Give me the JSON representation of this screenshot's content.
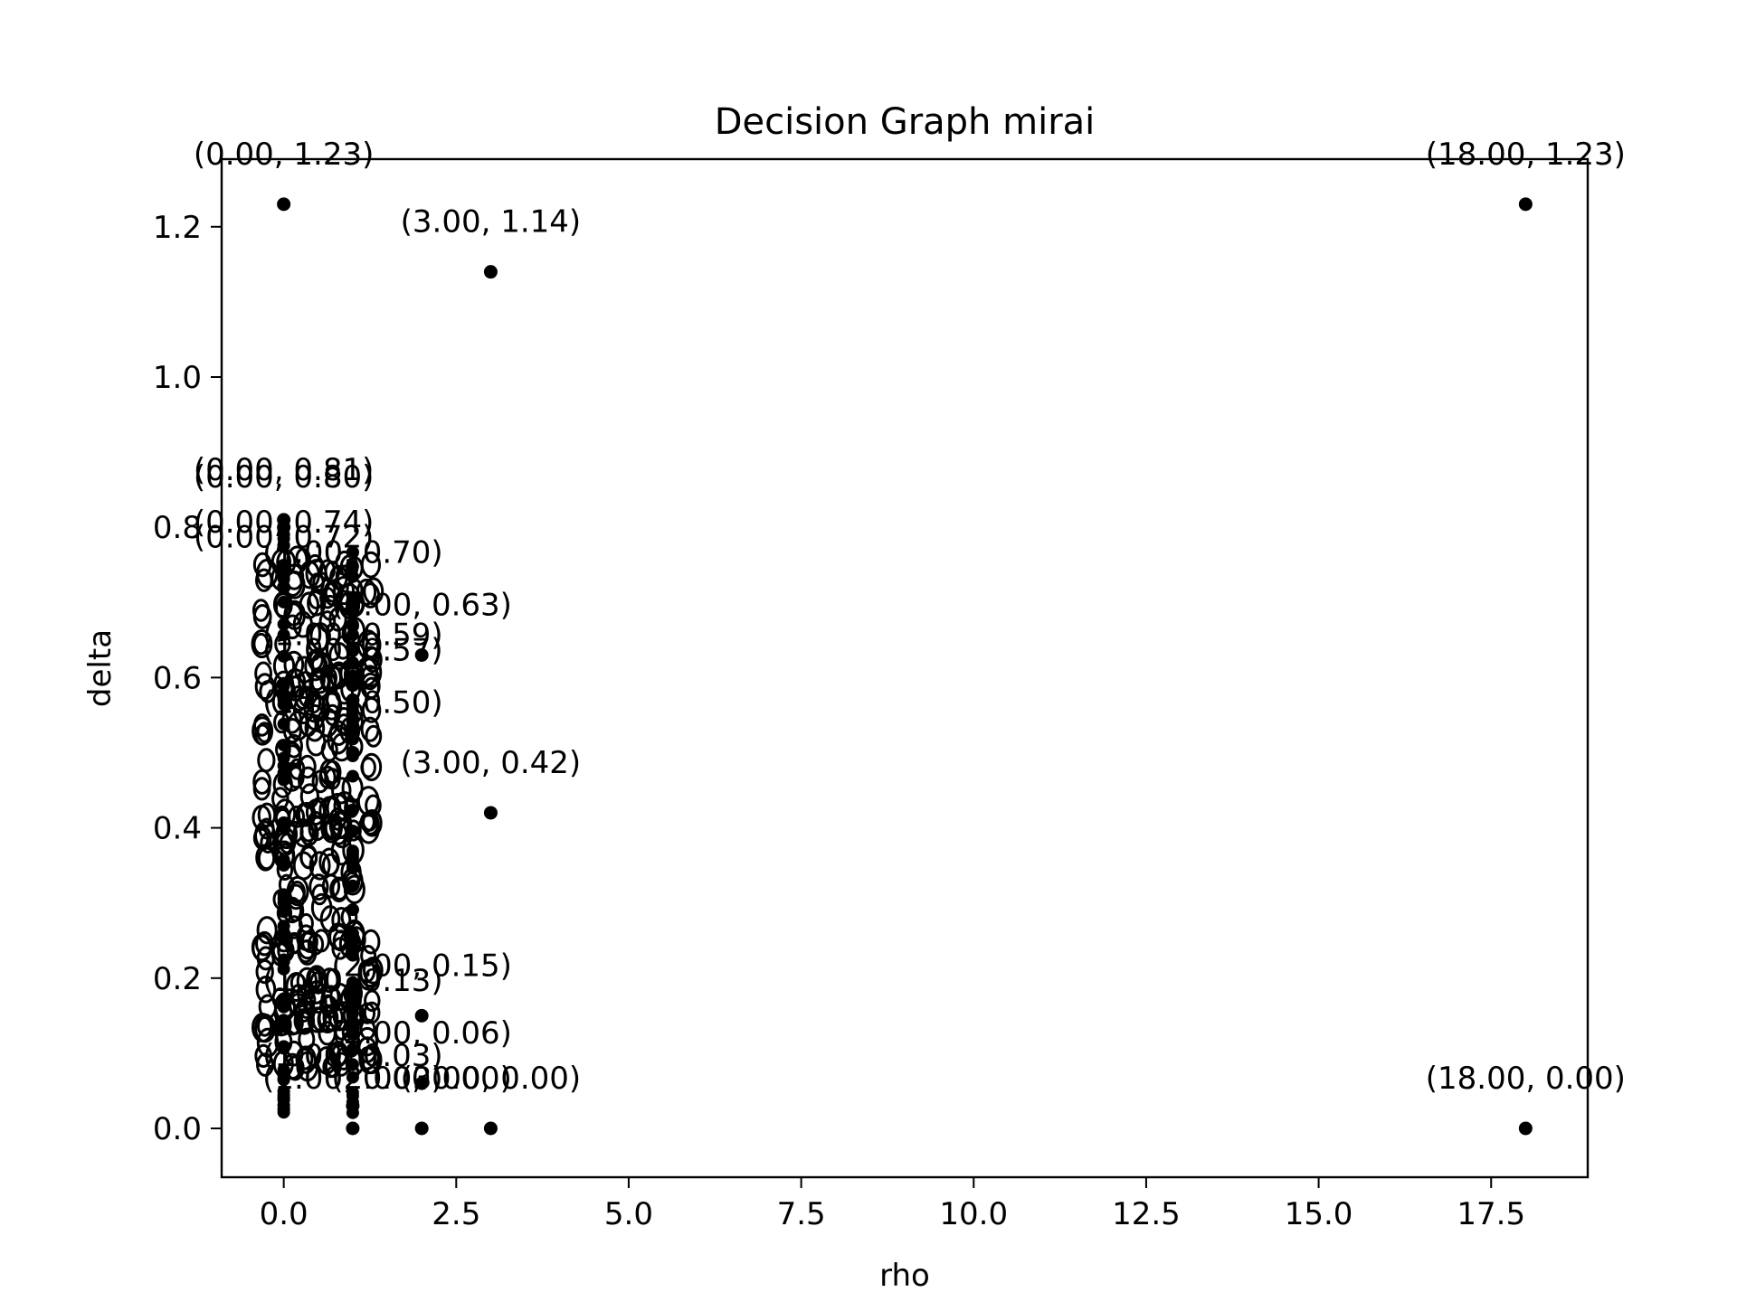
{
  "chart_data": {
    "type": "scatter",
    "title": "Decision Graph mirai",
    "xlabel": "rho",
    "ylabel": "delta",
    "xlim": [
      -0.9,
      18.9
    ],
    "ylim": [
      -0.065,
      1.29
    ],
    "xticks": [
      0.0,
      2.5,
      5.0,
      7.5,
      10.0,
      12.5,
      15.0,
      17.5
    ],
    "xtick_labels": [
      "0.0",
      "2.5",
      "5.0",
      "7.5",
      "10.0",
      "12.5",
      "15.0",
      "17.5"
    ],
    "yticks": [
      0.0,
      0.2,
      0.4,
      0.6,
      0.8,
      1.0,
      1.2
    ],
    "ytick_labels": [
      "0.0",
      "0.2",
      "0.4",
      "0.6",
      "0.8",
      "1.0",
      "1.2"
    ],
    "grid": false,
    "legend": "none",
    "marker_color": "#000000",
    "points": [
      {
        "x": 0.0,
        "y": 1.23,
        "label": "(0.00, 1.23)"
      },
      {
        "x": 18.0,
        "y": 1.23,
        "label": "(18.00, 1.23)"
      },
      {
        "x": 3.0,
        "y": 1.14,
        "label": "(3.00, 1.14)"
      },
      {
        "x": 0.0,
        "y": 0.81,
        "label": "(0.00, 0.81)"
      },
      {
        "x": 0.0,
        "y": 0.8,
        "label": "(0.00, 0.80)"
      },
      {
        "x": 0.0,
        "y": 0.74,
        "label": "(0.00, 0.74)"
      },
      {
        "x": 0.0,
        "y": 0.72,
        "label": "(0.00, 0.72)"
      },
      {
        "x": 1.0,
        "y": 0.7,
        "label": "(1.00, 0.70)"
      },
      {
        "x": 2.0,
        "y": 0.63,
        "label": "(2.00, 0.63)"
      },
      {
        "x": 1.0,
        "y": 0.59,
        "label": "(1.00, 0.59)"
      },
      {
        "x": 1.0,
        "y": 0.57,
        "label": "(1.00, 0.57)"
      },
      {
        "x": 1.0,
        "y": 0.5,
        "label": "(1.00, 0.50)"
      },
      {
        "x": 3.0,
        "y": 0.42,
        "label": "(3.00, 0.42)"
      },
      {
        "x": 2.0,
        "y": 0.15,
        "label": "(2.00, 0.15)"
      },
      {
        "x": 1.0,
        "y": 0.13,
        "label": "(1.00, 0.13)"
      },
      {
        "x": 2.0,
        "y": 0.06,
        "label": "(2.00, 0.06)"
      },
      {
        "x": 1.0,
        "y": 0.03,
        "label": "(1.00, 0.03)"
      },
      {
        "x": 1.0,
        "y": 0.0,
        "label": "(1.00, 0.00)"
      },
      {
        "x": 2.0,
        "y": 0.0,
        "label": "(2.00, 0.00)"
      },
      {
        "x": 3.0,
        "y": 0.0,
        "label": "(3.00, 0.00)"
      },
      {
        "x": 18.0,
        "y": 0.0,
        "label": "(18.00, 0.00)"
      }
    ]
  }
}
